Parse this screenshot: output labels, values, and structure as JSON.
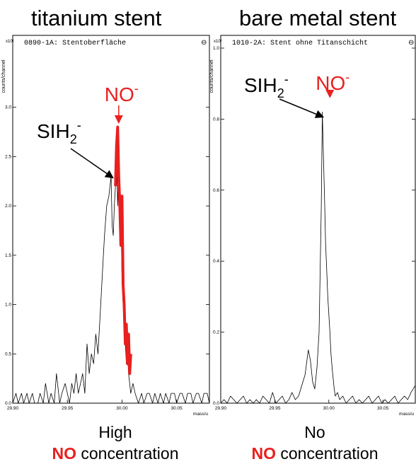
{
  "chart_data": [
    {
      "type": "line",
      "panel_title": "titanium stent",
      "spectrum_label": "0890-1A: Stentoberfläche",
      "ylabel": "counts/channel",
      "y_multiplier": "x10¹",
      "xlabel": "mass/u",
      "xlim": [
        29.9,
        30.08
      ],
      "ylim": [
        0,
        3.6
      ],
      "x_ticks": [
        "29.90",
        "29.95",
        "30.00",
        "30.05"
      ],
      "y_ticks": [
        "0.0",
        "0.5",
        "1.0",
        "1.5",
        "2.0",
        "2.5",
        "3.0"
      ],
      "annotations": [
        {
          "label": "NO",
          "superscript": "-",
          "color": "#e8201f",
          "target_x": 29.997,
          "target_y": 2.8
        },
        {
          "label": "SIH",
          "subscript": "2",
          "superscript": "-",
          "color": "#000000",
          "target_x": 29.993,
          "target_y": 2.3
        }
      ],
      "series": [
        {
          "color": "#000000",
          "x": [
            29.9,
            29.903,
            29.905,
            29.908,
            29.91,
            29.913,
            29.915,
            29.918,
            29.92,
            29.923,
            29.925,
            29.928,
            29.93,
            29.933,
            29.935,
            29.938,
            29.94,
            29.943,
            29.945,
            29.948,
            29.95,
            29.952,
            29.954,
            29.956,
            29.958,
            29.96,
            29.962,
            29.964,
            29.966,
            29.968,
            29.97,
            29.972,
            29.974,
            29.976,
            29.978,
            29.98,
            29.982,
            29.984,
            29.986,
            29.988,
            29.99,
            29.991,
            29.992,
            29.993,
            29.994,
            29.995,
            29.996,
            29.997,
            29.998,
            29.999,
            30.0,
            30.001,
            30.002,
            30.003,
            30.004,
            30.005,
            30.006,
            30.007,
            30.008,
            30.01,
            30.012,
            30.015,
            30.018,
            30.02,
            30.023,
            30.025,
            30.028,
            30.03,
            30.033,
            30.035,
            30.038,
            30.04,
            30.043,
            30.045,
            30.048,
            30.05,
            30.053,
            30.055,
            30.058,
            30.06,
            30.063,
            30.065,
            30.068,
            30.07,
            30.073,
            30.075,
            30.078,
            30.08
          ],
          "y": [
            0,
            0.1,
            0,
            0.1,
            0,
            0.1,
            0,
            0.1,
            0,
            0,
            0.1,
            0,
            0.2,
            0,
            0.1,
            0,
            0.3,
            0,
            0.1,
            0.2,
            0.1,
            0,
            0.2,
            0.1,
            0.3,
            0.1,
            0.2,
            0.3,
            0.1,
            0.6,
            0.3,
            0.5,
            0.4,
            0.7,
            0.5,
            0.9,
            1.3,
            1.7,
            2.0,
            2.1,
            2.3,
            1.8,
            1.7,
            2.0,
            2.2,
            2.6,
            2.0,
            2.4,
            1.6,
            1.9,
            1.3,
            1.0,
            0.9,
            0.6,
            0.4,
            0.5,
            0.3,
            0.2,
            0.1,
            0.2,
            0.1,
            0,
            0.1,
            0,
            0.1,
            0.1,
            0,
            0.1,
            0,
            0.1,
            0,
            0.1,
            0,
            0.1,
            0.1,
            0,
            0.1,
            0.1,
            0,
            0.1,
            0.1,
            0,
            0.1,
            0.1,
            0,
            0.1,
            0.1,
            0
          ]
        },
        {
          "color": "#e8201f",
          "x": [
            29.994,
            29.995,
            29.996,
            29.997,
            29.998,
            29.999,
            30.0,
            30.001,
            30.002,
            30.003,
            30.004,
            30.005,
            30.006,
            30.007,
            30.008
          ],
          "y": [
            2.2,
            2.6,
            2.8,
            2.3,
            2.0,
            1.6,
            2.1,
            1.2,
            1.0,
            0.6,
            0.8,
            0.4,
            0.7,
            0.3,
            0.5
          ]
        }
      ]
    },
    {
      "type": "line",
      "panel_title": "bare metal stent",
      "spectrum_label": "1010-2A: Stent ohne Titanschicht",
      "ylabel": "counts/channel",
      "y_multiplier": "x10²",
      "xlabel": "mass/u",
      "xlim": [
        29.9,
        30.08
      ],
      "ylim": [
        0,
        1.0
      ],
      "x_ticks": [
        "29.90",
        "29.95",
        "30.00",
        "30.05"
      ],
      "y_ticks": [
        "0.0",
        "0.2",
        "0.4",
        "0.6",
        "0.8",
        "1.0"
      ],
      "annotations": [
        {
          "label": "NO",
          "superscript": "-",
          "color": "#e8201f",
          "target_x": 30.001,
          "target_y": 0.85
        },
        {
          "label": "SIH",
          "subscript": "2",
          "superscript": "-",
          "color": "#000000",
          "target_x": 29.996,
          "target_y": 0.81
        }
      ],
      "series": [
        {
          "color": "#000000",
          "x": [
            29.9,
            29.903,
            29.906,
            29.909,
            29.912,
            29.915,
            29.918,
            29.921,
            29.924,
            29.927,
            29.93,
            29.933,
            29.936,
            29.939,
            29.942,
            29.945,
            29.948,
            29.951,
            29.954,
            29.957,
            29.96,
            29.963,
            29.966,
            29.969,
            29.972,
            29.975,
            29.978,
            29.981,
            29.983,
            29.985,
            29.987,
            29.989,
            29.991,
            29.993,
            29.994,
            29.995,
            29.996,
            29.997,
            29.998,
            29.999,
            30.0,
            30.001,
            30.002,
            30.003,
            30.004,
            30.005,
            30.006,
            30.008,
            30.01,
            30.013,
            30.016,
            30.019,
            30.022,
            30.025,
            30.028,
            30.031,
            30.034,
            30.037,
            30.04,
            30.043,
            30.046,
            30.049,
            30.052,
            30.055,
            30.058,
            30.061,
            30.064,
            30.067,
            30.07,
            30.073,
            30.076,
            30.08
          ],
          "y": [
            0,
            0.01,
            0,
            0.02,
            0.01,
            0,
            0.01,
            0.02,
            0,
            0.01,
            0,
            0.01,
            0,
            0.02,
            0.01,
            0,
            0.03,
            0,
            0.01,
            0.02,
            0,
            0.01,
            0.03,
            0.01,
            0.02,
            0.05,
            0.08,
            0.15,
            0.12,
            0.06,
            0.04,
            0.1,
            0.2,
            0.55,
            0.82,
            0.7,
            0.58,
            0.45,
            0.38,
            0.3,
            0.25,
            0.2,
            0.14,
            0.1,
            0.07,
            0.04,
            0.02,
            0.03,
            0.01,
            0.02,
            0,
            0.01,
            0.02,
            0,
            0.01,
            0,
            0.01,
            0.02,
            0,
            0.01,
            0.02,
            0,
            0.01,
            0,
            0.01,
            0.02,
            0,
            0.01,
            0.02,
            0.01,
            0.03,
            0.05
          ]
        }
      ]
    }
  ],
  "captions": {
    "left": {
      "line1": "High",
      "bold": "NO",
      "rest": " concentration"
    },
    "right": {
      "line1": "No",
      "bold": "NO",
      "rest": " concentration"
    }
  }
}
